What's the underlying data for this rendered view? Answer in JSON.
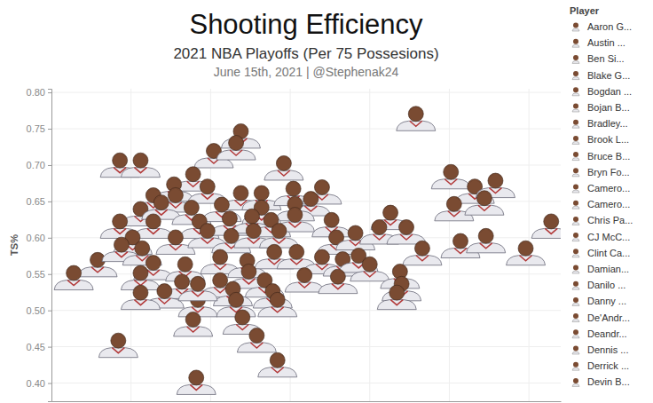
{
  "chart_data": {
    "type": "scatter",
    "title": "Shooting Efficiency",
    "subtitle": "2021 NBA Playoffs (Per 75 Possesions)",
    "caption": "June 15th, 2021 | @Stephenak24",
    "y_label": "TS%",
    "legend_title": "Player",
    "legend_entries": [
      "Aaron G...",
      "Austin ...",
      "Ben Si...",
      "Blake G...",
      "Bogdan ...",
      "Bojan B...",
      "Bradley...",
      "Brook L...",
      "Bruce B...",
      "Bryn Fo...",
      "Camero...",
      "Camero...",
      "Chris Pa...",
      "CJ McC...",
      "Clint Ca...",
      "Damian...",
      "Danilo ...",
      "Danny ...",
      "De'Andr...",
      "Deandr...",
      "Dennis ...",
      "Derrick ...",
      "Devin B..."
    ],
    "legend": "right",
    "marker": "face",
    "color": "#7a4b32",
    "grid": true,
    "tick_labels": "y",
    "xlim": [
      5,
      37
    ],
    "xticks": [
      10,
      15,
      20,
      25,
      30,
      35
    ],
    "ylim": [
      0.375,
      0.805
    ],
    "yticks": [
      {
        "value": 0.4,
        "label": "0.40"
      },
      0.45,
      {
        "value": 0.5,
        "label": "0.50"
      },
      0.55,
      {
        "value": 0.6,
        "label": "0.60"
      },
      0.65,
      {
        "value": 0.7,
        "label": "0.70"
      },
      0.75,
      {
        "value": 0.8,
        "label": "0.80"
      }
    ],
    "x": [
      27.9,
      16.9,
      15.2,
      16.6,
      9.3,
      10.6,
      19.6,
      13.9,
      12.7,
      30.1,
      31.6,
      32.9,
      11.4,
      12.8,
      14.8,
      16.9,
      18.2,
      20.2,
      22.0,
      21.3,
      20.3,
      10.6,
      11.9,
      13.8,
      15.7,
      18.2,
      30.3,
      32.2,
      36.4,
      26.3,
      9.3,
      11.4,
      14.3,
      16.2,
      17.6,
      18.8,
      20.3,
      22.6,
      10.1,
      12.8,
      14.8,
      16.3,
      17.7,
      19.3,
      22.9,
      24.1,
      25.6,
      27.3,
      28.3,
      30.7,
      32.3,
      7.9,
      9.4,
      10.7,
      11.4,
      13.4,
      15.6,
      17.3,
      19.0,
      20.4,
      22.0,
      23.3,
      24.3,
      34.8,
      6.4,
      10.6,
      13.2,
      15.6,
      17.4,
      18.4,
      20.9,
      23.0,
      25.0,
      26.9,
      27.0,
      12.1,
      16.4,
      18.9,
      26.7,
      10.6,
      14.2,
      16.6,
      19.2,
      14.2,
      13.9,
      17.0,
      9.2,
      17.9,
      19.2,
      14.1
    ],
    "values": [
      0.768,
      0.744,
      0.717,
      0.728,
      0.704,
      0.704,
      0.7,
      0.685,
      0.671,
      0.688,
      0.668,
      0.676,
      0.656,
      0.656,
      0.668,
      0.659,
      0.659,
      0.665,
      0.667,
      0.651,
      0.644,
      0.637,
      0.646,
      0.639,
      0.643,
      0.639,
      0.644,
      0.652,
      0.62,
      0.632,
      0.62,
      0.62,
      0.62,
      0.624,
      0.627,
      0.622,
      0.629,
      0.622,
      0.598,
      0.598,
      0.607,
      0.6,
      0.607,
      0.607,
      0.598,
      0.604,
      0.612,
      0.612,
      0.583,
      0.593,
      0.6,
      0.567,
      0.588,
      0.583,
      0.563,
      0.561,
      0.571,
      0.566,
      0.578,
      0.578,
      0.571,
      0.568,
      0.573,
      0.583,
      0.549,
      0.549,
      0.537,
      0.539,
      0.551,
      0.539,
      0.546,
      0.544,
      0.561,
      0.551,
      0.534,
      0.524,
      0.527,
      0.524,
      0.522,
      0.522,
      0.512,
      0.512,
      0.512,
      0.534,
      0.485,
      0.488,
      0.456,
      0.463,
      0.429,
      0.405
    ]
  }
}
